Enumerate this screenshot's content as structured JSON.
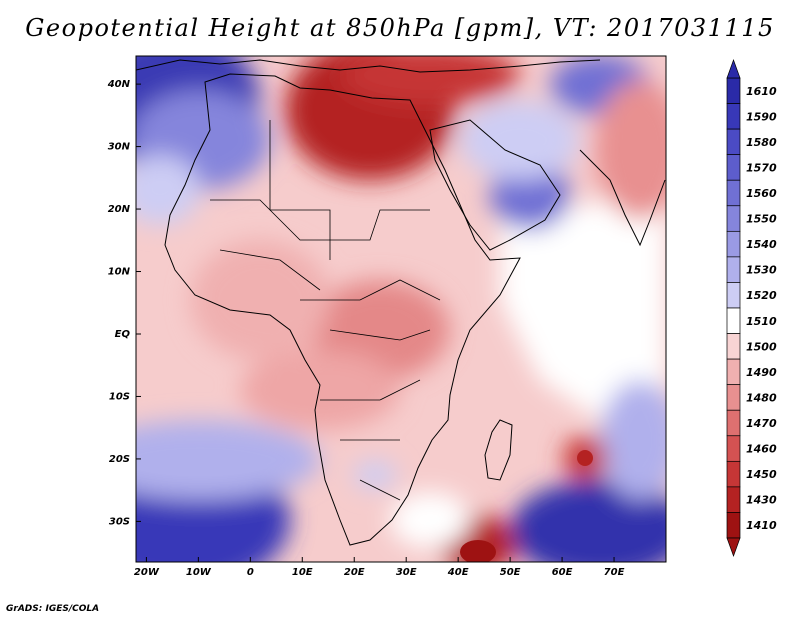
{
  "title": "Geopotential Height at 850hPa [gpm], VT: 2017031115",
  "map": {
    "lon_labels": [
      "20W",
      "10W",
      "0",
      "10E",
      "20E",
      "30E",
      "40E",
      "50E",
      "60E",
      "70E"
    ],
    "lat_labels": [
      "40N",
      "30N",
      "20N",
      "10N",
      "EQ",
      "10S",
      "20S",
      "30S"
    ],
    "lon_range": [
      -22,
      80
    ],
    "lat_range": [
      -36.5,
      44.5
    ]
  },
  "colorbar": {
    "levels": [
      "1610",
      "1590",
      "1580",
      "1570",
      "1560",
      "1550",
      "1540",
      "1530",
      "1520",
      "1510",
      "1500",
      "1490",
      "1480",
      "1470",
      "1460",
      "1450",
      "1430",
      "1410"
    ],
    "colors": [
      "#2a2aa8",
      "#3838b8",
      "#4b4bc4",
      "#5d5dcc",
      "#7070d4",
      "#8585dc",
      "#9a9ae4",
      "#b0b0ec",
      "#cdcdf4",
      "#ffffff",
      "#f8d4d4",
      "#f0b0b0",
      "#e89090",
      "#de7070",
      "#d45252",
      "#c63636",
      "#b42222",
      "#9e1212"
    ]
  },
  "credit": "GrADS: IGES/COLA"
}
